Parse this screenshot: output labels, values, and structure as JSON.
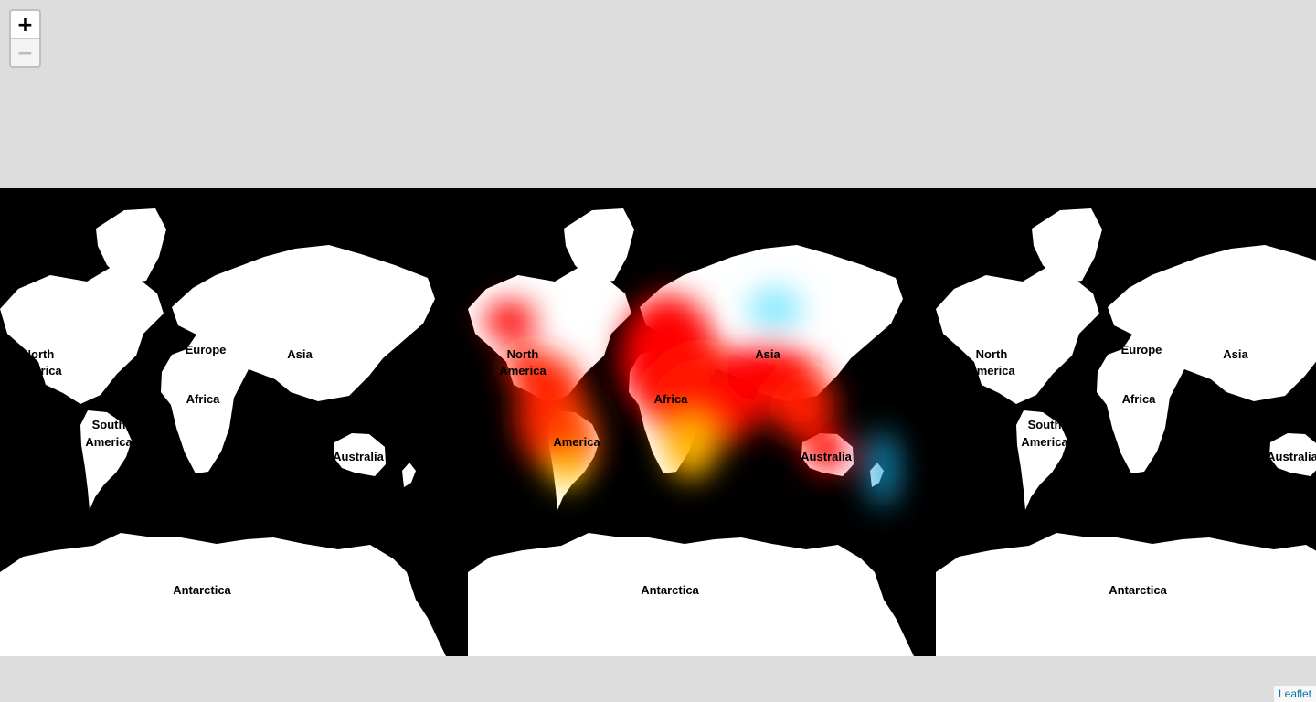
{
  "map": {
    "zoom_controls": {
      "zoom_in": "+",
      "zoom_out": "−"
    },
    "attribution": "Leaflet",
    "colors": {
      "background": "#dddddd",
      "ocean": "#000000",
      "land": "#ffffff",
      "heat_low": "#0000ff",
      "heat_mid": "#00ff00",
      "heat_high": "#ff0000"
    },
    "labels": {
      "north_america_l1": "North",
      "north_america_l2": "America",
      "europe": "Europe",
      "asia": "Asia",
      "africa": "Africa",
      "south_america_l1": "South",
      "south_america_l2": "America",
      "australia": "Australia",
      "antarctica": "Antarctica"
    }
  }
}
